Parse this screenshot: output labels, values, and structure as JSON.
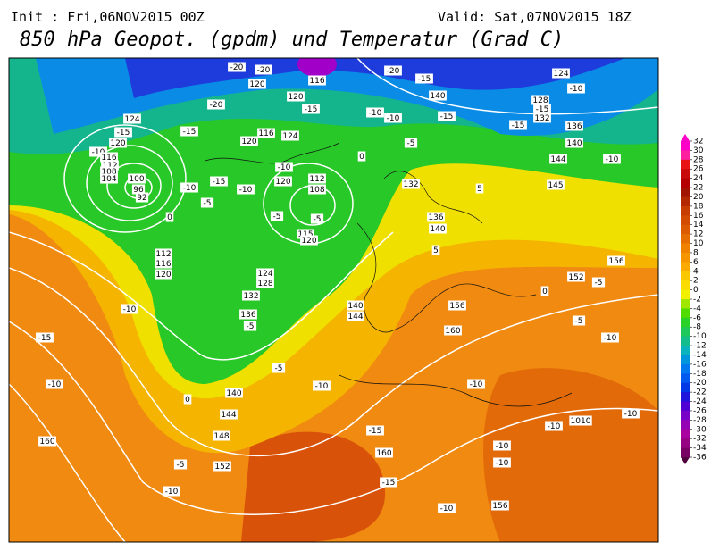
{
  "header": {
    "init": "Init : Fri,06NOV2015 00Z",
    "valid": "Valid: Sat,07NOV2015 18Z",
    "title": "850 hPa Geopot. (gpdm) und Temperatur (Grad C)"
  },
  "colorbar": {
    "ticks": [
      32,
      30,
      28,
      26,
      24,
      22,
      20,
      18,
      16,
      14,
      12,
      10,
      8,
      6,
      4,
      2,
      0,
      -2,
      -4,
      -6,
      -8,
      -10,
      -12,
      -14,
      -16,
      -18,
      -20,
      -22,
      -24,
      -26,
      -28,
      -30,
      -32,
      -34,
      -36
    ],
    "colors": [
      "#ff00c8",
      "#ff20a0",
      "#e81414",
      "#c80a0a",
      "#b40000",
      "#a01400",
      "#b42800",
      "#c83c00",
      "#d24b00",
      "#dc5a00",
      "#e66e00",
      "#f08200",
      "#f59600",
      "#faaa00",
      "#fac800",
      "#fadc00",
      "#f0f000",
      "#a0e600",
      "#50dc00",
      "#28d228",
      "#1ec85a",
      "#14be8c",
      "#0ab4be",
      "#0096dc",
      "#0078f0",
      "#005af0",
      "#0037e6",
      "#1e14dc",
      "#5000d2",
      "#7800c8",
      "#9600b4",
      "#aa00a0",
      "#960082",
      "#780064",
      "#50003c"
    ]
  },
  "contour_labels": [
    -20,
    -20,
    116,
    -20,
    -15,
    140,
    124,
    -10,
    128,
    132,
    -15,
    -15,
    -15,
    136,
    140,
    -10,
    144,
    145,
    124,
    -15,
    120,
    -10,
    116,
    112,
    108,
    104,
    100,
    96,
    92,
    0,
    -15,
    -20,
    120,
    120,
    -15,
    -10,
    -10,
    -10,
    -5,
    0,
    124,
    116,
    120,
    -10,
    120,
    112,
    108,
    -5,
    115,
    120,
    -5,
    -15,
    -10,
    -5,
    132,
    136,
    140,
    5,
    5,
    112,
    116,
    120,
    124,
    128,
    132,
    136,
    -5,
    -10,
    -15,
    -10,
    160,
    0,
    140,
    144,
    148,
    152,
    -5,
    -10,
    -5,
    -10,
    140,
    144,
    156,
    160,
    0,
    152,
    156,
    -5,
    -5,
    -10,
    -10,
    1010,
    -10,
    -10,
    -10,
    -10,
    -15,
    160,
    -15,
    -10,
    156
  ]
}
